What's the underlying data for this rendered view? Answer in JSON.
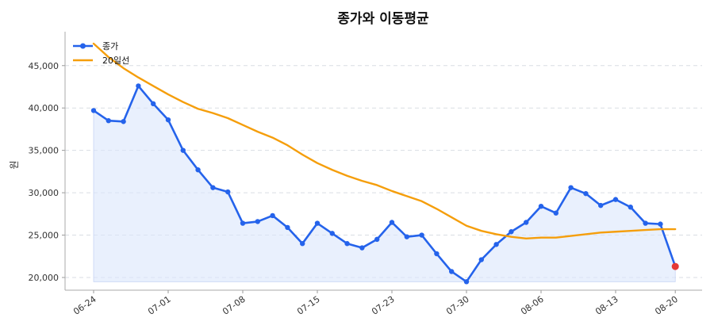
{
  "chart_data": {
    "type": "line",
    "title": "종가와 이동평균",
    "xlabel": "",
    "ylabel": "원",
    "ylim": [
      18500,
      49000
    ],
    "y_ticks": [
      20000,
      25000,
      30000,
      35000,
      40000,
      45000
    ],
    "y_tick_labels": [
      "20,000",
      "25,000",
      "30,000",
      "35,000",
      "40,000",
      "45,000"
    ],
    "x_tick_labels": [
      "06-24",
      "07-01",
      "07-08",
      "07-15",
      "07-23",
      "07-30",
      "08-06",
      "08-13",
      "08-20"
    ],
    "x_tick_index": [
      0,
      5,
      10,
      15,
      20,
      25,
      30,
      35,
      39
    ],
    "legend_position": "top-left",
    "grid": "horizontal dashed",
    "series": [
      {
        "name": "종가",
        "color": "#2563eb",
        "markers": true,
        "fill_color": "#dbe6fb",
        "values": [
          39700,
          38500,
          38400,
          42600,
          40500,
          38600,
          35000,
          32700,
          30600,
          30100,
          26400,
          26600,
          27300,
          25900,
          24000,
          26400,
          25200,
          24000,
          23500,
          24500,
          26500,
          24800,
          25000,
          22800,
          20700,
          19500,
          22100,
          23900,
          25400,
          26500,
          28400,
          27600,
          30600,
          29900,
          28500,
          29200,
          28300,
          26400,
          26300,
          21300
        ]
      },
      {
        "name": "20일선",
        "color": "#f59e0b",
        "markers": false,
        "values": [
          47600,
          46000,
          44700,
          43600,
          42600,
          41600,
          40700,
          39900,
          39400,
          38800,
          38000,
          37200,
          36500,
          35600,
          34500,
          33500,
          32700,
          32000,
          31400,
          30900,
          30200,
          29600,
          29000,
          28100,
          27100,
          26100,
          25500,
          25100,
          24800,
          24600,
          24700,
          24700,
          24900,
          25100,
          25300,
          25400,
          25500,
          25600,
          25700,
          25700
        ]
      }
    ],
    "highlight_last_point": {
      "color": "#e53935"
    }
  }
}
